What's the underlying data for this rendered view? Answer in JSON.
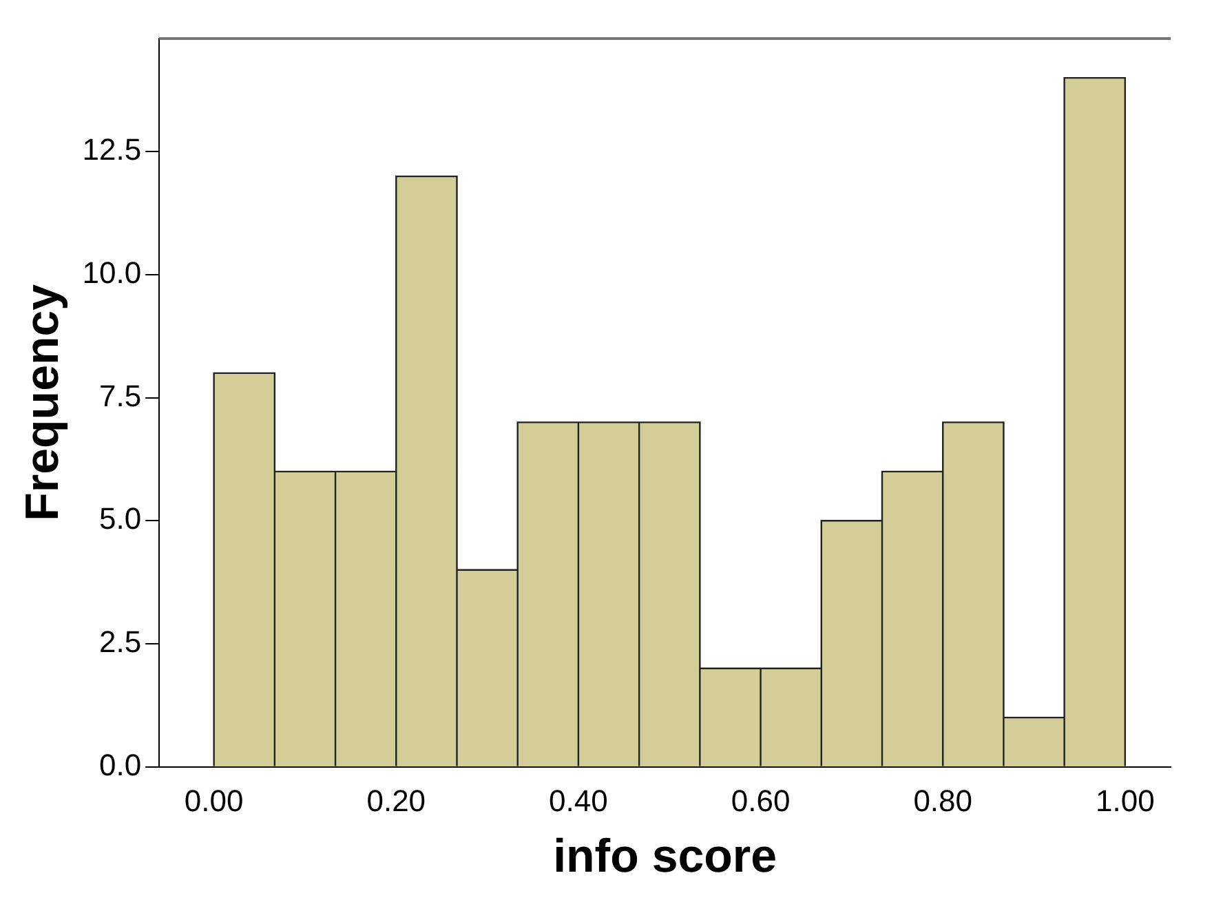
{
  "chart_data": {
    "type": "histogram",
    "xlabel": "info score",
    "ylabel": "Frequency",
    "bins": [
      0,
      0.0667,
      0.1333,
      0.2,
      0.2667,
      0.3333,
      0.4,
      0.4667,
      0.5333,
      0.6,
      0.6667,
      0.7333,
      0.8,
      0.8667,
      0.9333,
      1
    ],
    "values": [
      8,
      6,
      6,
      12,
      4,
      7,
      7,
      7,
      2,
      2,
      5,
      6,
      7,
      1,
      14
    ],
    "color": "#d3ce97",
    "xlim": [
      -0.06,
      1.05
    ],
    "xticks": [
      {
        "value": 0,
        "label": "0.00"
      },
      {
        "value": 0.2,
        "label": "0.20"
      },
      {
        "value": 0.4,
        "label": "0.40"
      },
      {
        "value": 0.6,
        "label": "0.60"
      },
      {
        "value": 0.8,
        "label": "0.80"
      },
      {
        "value": 1,
        "label": "1.00"
      }
    ],
    "ylim": [
      0,
      14.8
    ],
    "yticks": [
      {
        "value": 0,
        "label": "0.0"
      },
      {
        "value": 2.5,
        "label": "2.5"
      },
      {
        "value": 5,
        "label": "5.0"
      },
      {
        "value": 7.5,
        "label": "7.5"
      },
      {
        "value": 10,
        "label": "10.0"
      },
      {
        "value": 12.5,
        "label": "12.5"
      }
    ],
    "grid": false,
    "legend": false
  }
}
